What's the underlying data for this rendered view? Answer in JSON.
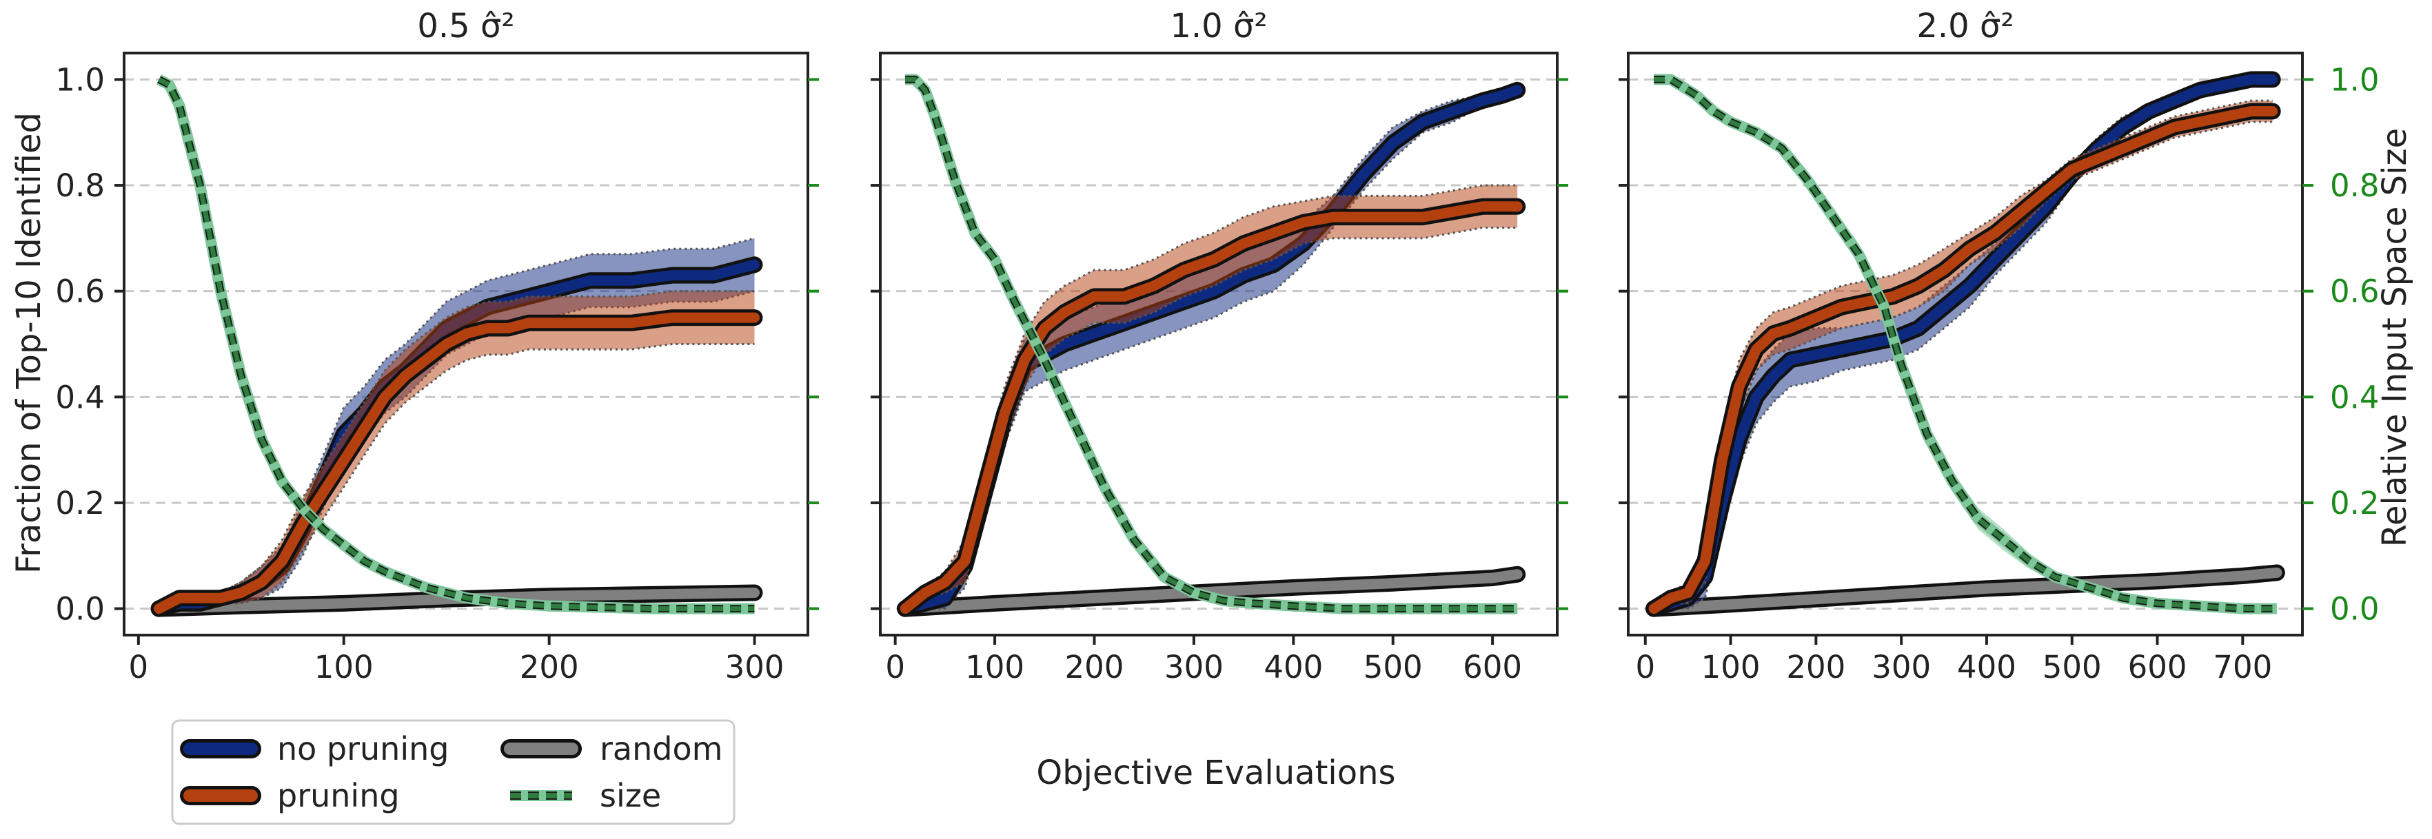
{
  "figure": {
    "xlabel": "Objective Evaluations",
    "ylabel_left": "Fraction of Top-10 Identified",
    "ylabel_right": "Relative Input Space Size"
  },
  "colors": {
    "no_pruning": "#0d2a80",
    "pruning": "#b5400f",
    "random": "#808080",
    "size": "#2e7d3e",
    "size_fill": "#7ec79a",
    "right_axis": "#1a8a1a"
  },
  "legend": [
    {
      "key": "no_pruning",
      "label": "no pruning"
    },
    {
      "key": "random",
      "label": "random"
    },
    {
      "key": "pruning",
      "label": "pruning"
    },
    {
      "key": "size",
      "label": "size"
    }
  ],
  "chart_data": [
    {
      "type": "line",
      "title": "0.5 σ̂²",
      "xlim": [
        -7,
        326
      ],
      "ylim": [
        -0.05,
        1.05
      ],
      "xticks": [
        0,
        100,
        200,
        300
      ],
      "yticks": [
        0.0,
        0.2,
        0.4,
        0.6,
        0.8,
        1.0
      ],
      "grid": true,
      "series": [
        {
          "name": "no pruning",
          "x": [
            10,
            20,
            30,
            40,
            50,
            60,
            70,
            80,
            90,
            100,
            110,
            120,
            130,
            140,
            150,
            160,
            170,
            180,
            190,
            200,
            220,
            240,
            260,
            280,
            300
          ],
          "y": [
            0.0,
            0.01,
            0.01,
            0.02,
            0.03,
            0.05,
            0.08,
            0.15,
            0.24,
            0.33,
            0.37,
            0.42,
            0.45,
            0.49,
            0.53,
            0.55,
            0.57,
            0.58,
            0.59,
            0.6,
            0.62,
            0.62,
            0.63,
            0.63,
            0.65
          ],
          "band": [
            0.0,
            0.01,
            0.01,
            0.01,
            0.02,
            0.03,
            0.04,
            0.05,
            0.05,
            0.05,
            0.05,
            0.05,
            0.05,
            0.05,
            0.05,
            0.05,
            0.05,
            0.05,
            0.05,
            0.05,
            0.05,
            0.05,
            0.05,
            0.05,
            0.05
          ]
        },
        {
          "name": "pruning",
          "x": [
            10,
            20,
            30,
            40,
            50,
            60,
            70,
            80,
            90,
            100,
            110,
            120,
            130,
            140,
            150,
            160,
            170,
            180,
            190,
            200,
            220,
            240,
            260,
            280,
            300
          ],
          "y": [
            0.0,
            0.02,
            0.02,
            0.02,
            0.03,
            0.05,
            0.09,
            0.16,
            0.22,
            0.28,
            0.34,
            0.4,
            0.44,
            0.47,
            0.5,
            0.52,
            0.53,
            0.53,
            0.54,
            0.54,
            0.54,
            0.54,
            0.55,
            0.55,
            0.55
          ],
          "band": [
            0.0,
            0.01,
            0.01,
            0.01,
            0.02,
            0.03,
            0.04,
            0.05,
            0.05,
            0.05,
            0.05,
            0.05,
            0.05,
            0.05,
            0.05,
            0.05,
            0.05,
            0.05,
            0.05,
            0.05,
            0.05,
            0.05,
            0.05,
            0.05,
            0.05
          ]
        },
        {
          "name": "random",
          "x": [
            10,
            50,
            100,
            150,
            200,
            250,
            300
          ],
          "y": [
            0.0,
            0.005,
            0.01,
            0.018,
            0.024,
            0.027,
            0.03
          ],
          "band": [
            0,
            0,
            0,
            0,
            0,
            0,
            0
          ]
        },
        {
          "name": "size",
          "axis": "right",
          "x": [
            10,
            15,
            20,
            30,
            40,
            50,
            60,
            70,
            80,
            90,
            100,
            110,
            120,
            140,
            160,
            180,
            200,
            250,
            300
          ],
          "y": [
            1.0,
            0.99,
            0.95,
            0.8,
            0.6,
            0.44,
            0.32,
            0.24,
            0.19,
            0.15,
            0.12,
            0.09,
            0.07,
            0.04,
            0.02,
            0.01,
            0.005,
            0.0,
            0.0
          ],
          "band": [
            0,
            0,
            0.01,
            0.01,
            0.01,
            0.01,
            0.01,
            0.01,
            0.01,
            0.01,
            0.01,
            0.01,
            0.01,
            0.01,
            0.01,
            0.01,
            0.01,
            0.01,
            0.01
          ]
        }
      ]
    },
    {
      "type": "line",
      "title": "1.0 σ̂²",
      "xlim": [
        -15,
        665
      ],
      "ylim": [
        -0.05,
        1.05
      ],
      "xticks": [
        0,
        100,
        200,
        300,
        400,
        500,
        600
      ],
      "yticks": [
        0.0,
        0.2,
        0.4,
        0.6,
        0.8,
        1.0
      ],
      "grid": true,
      "series": [
        {
          "name": "no pruning",
          "x": [
            10,
            30,
            50,
            70,
            90,
            110,
            130,
            150,
            170,
            200,
            230,
            260,
            290,
            320,
            350,
            380,
            410,
            440,
            470,
            500,
            530,
            560,
            590,
            610,
            625
          ],
          "y": [
            0.0,
            0.01,
            0.02,
            0.08,
            0.22,
            0.36,
            0.46,
            0.48,
            0.5,
            0.52,
            0.54,
            0.56,
            0.58,
            0.6,
            0.63,
            0.65,
            0.69,
            0.75,
            0.82,
            0.88,
            0.92,
            0.94,
            0.96,
            0.97,
            0.98
          ],
          "band": [
            0.0,
            0.01,
            0.02,
            0.04,
            0.05,
            0.05,
            0.05,
            0.05,
            0.05,
            0.05,
            0.05,
            0.05,
            0.05,
            0.05,
            0.05,
            0.05,
            0.04,
            0.03,
            0.03,
            0.03,
            0.02,
            0.02,
            0.01,
            0.01,
            0.01
          ]
        },
        {
          "name": "pruning",
          "x": [
            10,
            30,
            50,
            70,
            90,
            110,
            130,
            150,
            170,
            200,
            230,
            260,
            290,
            320,
            350,
            380,
            410,
            440,
            470,
            500,
            530,
            560,
            590,
            625
          ],
          "y": [
            0.0,
            0.03,
            0.05,
            0.09,
            0.23,
            0.37,
            0.47,
            0.53,
            0.56,
            0.59,
            0.59,
            0.61,
            0.64,
            0.66,
            0.69,
            0.71,
            0.73,
            0.74,
            0.74,
            0.74,
            0.74,
            0.75,
            0.76,
            0.76
          ],
          "band": [
            0.0,
            0.01,
            0.02,
            0.04,
            0.05,
            0.05,
            0.05,
            0.05,
            0.05,
            0.05,
            0.05,
            0.05,
            0.05,
            0.05,
            0.05,
            0.05,
            0.04,
            0.04,
            0.04,
            0.04,
            0.04,
            0.04,
            0.04,
            0.04
          ]
        },
        {
          "name": "random",
          "x": [
            10,
            100,
            200,
            300,
            400,
            500,
            600,
            625
          ],
          "y": [
            0.0,
            0.01,
            0.02,
            0.03,
            0.04,
            0.048,
            0.058,
            0.065
          ],
          "band": [
            0,
            0,
            0,
            0,
            0,
            0,
            0,
            0
          ]
        },
        {
          "name": "size",
          "axis": "right",
          "x": [
            10,
            20,
            30,
            40,
            60,
            80,
            100,
            120,
            150,
            180,
            210,
            240,
            270,
            300,
            330,
            360,
            400,
            450,
            500,
            550,
            625
          ],
          "y": [
            1.0,
            1.0,
            0.98,
            0.93,
            0.81,
            0.71,
            0.66,
            0.58,
            0.47,
            0.35,
            0.23,
            0.13,
            0.06,
            0.03,
            0.015,
            0.01,
            0.005,
            0.0,
            0.0,
            0.0,
            0.0
          ],
          "band": [
            0,
            0,
            0.01,
            0.01,
            0.01,
            0.01,
            0.01,
            0.01,
            0.01,
            0.01,
            0.01,
            0.01,
            0.01,
            0.01,
            0.01,
            0.01,
            0.01,
            0.01,
            0.01,
            0.01,
            0.01
          ]
        }
      ]
    },
    {
      "type": "line",
      "title": "2.0 σ̂²",
      "xlim": [
        -20,
        770
      ],
      "ylim": [
        -0.05,
        1.05
      ],
      "xticks": [
        0,
        100,
        200,
        300,
        400,
        500,
        600,
        700
      ],
      "yticks": [
        0.0,
        0.2,
        0.4,
        0.6,
        0.8,
        1.0
      ],
      "yticks_right": [
        0.0,
        0.2,
        0.4,
        0.6,
        0.8,
        1.0
      ],
      "grid": true,
      "series": [
        {
          "name": "no pruning",
          "x": [
            10,
            30,
            50,
            70,
            90,
            110,
            130,
            150,
            170,
            200,
            230,
            260,
            290,
            320,
            350,
            380,
            410,
            440,
            470,
            500,
            530,
            560,
            590,
            620,
            650,
            680,
            710,
            735
          ],
          "y": [
            0.0,
            0.01,
            0.02,
            0.06,
            0.2,
            0.32,
            0.4,
            0.44,
            0.47,
            0.48,
            0.49,
            0.5,
            0.51,
            0.53,
            0.57,
            0.61,
            0.66,
            0.71,
            0.76,
            0.82,
            0.87,
            0.91,
            0.94,
            0.96,
            0.98,
            0.99,
            1.0,
            1.0
          ],
          "band": [
            0.0,
            0.01,
            0.02,
            0.04,
            0.05,
            0.05,
            0.05,
            0.05,
            0.05,
            0.05,
            0.04,
            0.04,
            0.04,
            0.04,
            0.04,
            0.04,
            0.03,
            0.03,
            0.03,
            0.02,
            0.02,
            0.02,
            0.01,
            0.01,
            0.01,
            0.01,
            0.0,
            0.0
          ]
        },
        {
          "name": "pruning",
          "x": [
            10,
            30,
            50,
            70,
            90,
            110,
            130,
            150,
            170,
            200,
            230,
            260,
            290,
            320,
            350,
            380,
            410,
            440,
            470,
            500,
            530,
            560,
            590,
            620,
            650,
            680,
            710,
            735
          ],
          "y": [
            0.0,
            0.02,
            0.03,
            0.09,
            0.28,
            0.42,
            0.49,
            0.52,
            0.53,
            0.55,
            0.57,
            0.58,
            0.59,
            0.61,
            0.64,
            0.68,
            0.71,
            0.75,
            0.79,
            0.83,
            0.85,
            0.87,
            0.89,
            0.91,
            0.92,
            0.93,
            0.94,
            0.94
          ],
          "band": [
            0.0,
            0.01,
            0.02,
            0.04,
            0.05,
            0.05,
            0.04,
            0.04,
            0.04,
            0.04,
            0.04,
            0.04,
            0.04,
            0.04,
            0.04,
            0.03,
            0.03,
            0.03,
            0.02,
            0.02,
            0.02,
            0.02,
            0.02,
            0.02,
            0.02,
            0.02,
            0.02,
            0.02
          ]
        },
        {
          "name": "random",
          "x": [
            10,
            100,
            200,
            300,
            400,
            500,
            600,
            700,
            740
          ],
          "y": [
            0.0,
            0.008,
            0.018,
            0.028,
            0.038,
            0.045,
            0.052,
            0.062,
            0.068
          ],
          "band": [
            0,
            0,
            0,
            0,
            0,
            0,
            0,
            0,
            0
          ]
        },
        {
          "name": "size",
          "axis": "right",
          "x": [
            10,
            30,
            40,
            60,
            80,
            100,
            130,
            160,
            190,
            220,
            250,
            280,
            300,
            330,
            360,
            390,
            420,
            450,
            480,
            520,
            560,
            600,
            650,
            700,
            740
          ],
          "y": [
            1.0,
            1.0,
            0.99,
            0.97,
            0.94,
            0.92,
            0.9,
            0.87,
            0.81,
            0.74,
            0.67,
            0.57,
            0.46,
            0.33,
            0.24,
            0.17,
            0.13,
            0.09,
            0.06,
            0.04,
            0.02,
            0.01,
            0.005,
            0.0,
            0.0
          ],
          "band": [
            0,
            0,
            0.01,
            0.01,
            0.01,
            0.01,
            0.01,
            0.01,
            0.01,
            0.015,
            0.02,
            0.02,
            0.02,
            0.02,
            0.02,
            0.02,
            0.02,
            0.015,
            0.01,
            0.01,
            0.01,
            0.01,
            0.01,
            0.01,
            0.01
          ]
        }
      ]
    }
  ]
}
